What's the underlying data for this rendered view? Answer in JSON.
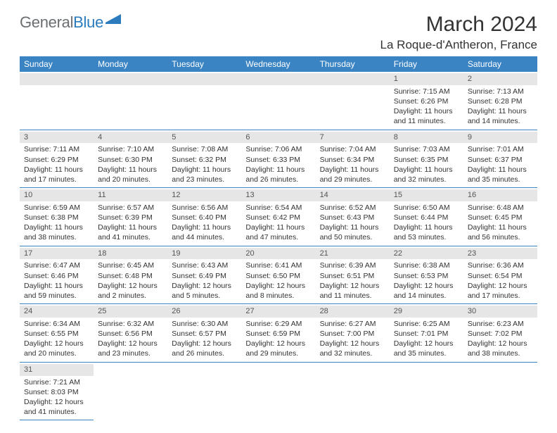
{
  "logo": {
    "primary": "General",
    "accent": "Blue"
  },
  "title": "March 2024",
  "location": "La Roque-d'Antheron, France",
  "colors": {
    "header_bg": "#3b84c4",
    "header_fg": "#ffffff",
    "daynum_bg": "#e6e6e6",
    "rule": "#3b84c4",
    "logo_primary": "#6b6f72",
    "logo_accent": "#2b7bbd"
  },
  "weekdays": [
    "Sunday",
    "Monday",
    "Tuesday",
    "Wednesday",
    "Thursday",
    "Friday",
    "Saturday"
  ],
  "weeks": [
    [
      {
        "n": "",
        "lines": []
      },
      {
        "n": "",
        "lines": []
      },
      {
        "n": "",
        "lines": []
      },
      {
        "n": "",
        "lines": []
      },
      {
        "n": "",
        "lines": []
      },
      {
        "n": "1",
        "lines": [
          "Sunrise: 7:15 AM",
          "Sunset: 6:26 PM",
          "Daylight: 11 hours",
          "and 11 minutes."
        ]
      },
      {
        "n": "2",
        "lines": [
          "Sunrise: 7:13 AM",
          "Sunset: 6:28 PM",
          "Daylight: 11 hours",
          "and 14 minutes."
        ]
      }
    ],
    [
      {
        "n": "3",
        "lines": [
          "Sunrise: 7:11 AM",
          "Sunset: 6:29 PM",
          "Daylight: 11 hours",
          "and 17 minutes."
        ]
      },
      {
        "n": "4",
        "lines": [
          "Sunrise: 7:10 AM",
          "Sunset: 6:30 PM",
          "Daylight: 11 hours",
          "and 20 minutes."
        ]
      },
      {
        "n": "5",
        "lines": [
          "Sunrise: 7:08 AM",
          "Sunset: 6:32 PM",
          "Daylight: 11 hours",
          "and 23 minutes."
        ]
      },
      {
        "n": "6",
        "lines": [
          "Sunrise: 7:06 AM",
          "Sunset: 6:33 PM",
          "Daylight: 11 hours",
          "and 26 minutes."
        ]
      },
      {
        "n": "7",
        "lines": [
          "Sunrise: 7:04 AM",
          "Sunset: 6:34 PM",
          "Daylight: 11 hours",
          "and 29 minutes."
        ]
      },
      {
        "n": "8",
        "lines": [
          "Sunrise: 7:03 AM",
          "Sunset: 6:35 PM",
          "Daylight: 11 hours",
          "and 32 minutes."
        ]
      },
      {
        "n": "9",
        "lines": [
          "Sunrise: 7:01 AM",
          "Sunset: 6:37 PM",
          "Daylight: 11 hours",
          "and 35 minutes."
        ]
      }
    ],
    [
      {
        "n": "10",
        "lines": [
          "Sunrise: 6:59 AM",
          "Sunset: 6:38 PM",
          "Daylight: 11 hours",
          "and 38 minutes."
        ]
      },
      {
        "n": "11",
        "lines": [
          "Sunrise: 6:57 AM",
          "Sunset: 6:39 PM",
          "Daylight: 11 hours",
          "and 41 minutes."
        ]
      },
      {
        "n": "12",
        "lines": [
          "Sunrise: 6:56 AM",
          "Sunset: 6:40 PM",
          "Daylight: 11 hours",
          "and 44 minutes."
        ]
      },
      {
        "n": "13",
        "lines": [
          "Sunrise: 6:54 AM",
          "Sunset: 6:42 PM",
          "Daylight: 11 hours",
          "and 47 minutes."
        ]
      },
      {
        "n": "14",
        "lines": [
          "Sunrise: 6:52 AM",
          "Sunset: 6:43 PM",
          "Daylight: 11 hours",
          "and 50 minutes."
        ]
      },
      {
        "n": "15",
        "lines": [
          "Sunrise: 6:50 AM",
          "Sunset: 6:44 PM",
          "Daylight: 11 hours",
          "and 53 minutes."
        ]
      },
      {
        "n": "16",
        "lines": [
          "Sunrise: 6:48 AM",
          "Sunset: 6:45 PM",
          "Daylight: 11 hours",
          "and 56 minutes."
        ]
      }
    ],
    [
      {
        "n": "17",
        "lines": [
          "Sunrise: 6:47 AM",
          "Sunset: 6:46 PM",
          "Daylight: 11 hours",
          "and 59 minutes."
        ]
      },
      {
        "n": "18",
        "lines": [
          "Sunrise: 6:45 AM",
          "Sunset: 6:48 PM",
          "Daylight: 12 hours",
          "and 2 minutes."
        ]
      },
      {
        "n": "19",
        "lines": [
          "Sunrise: 6:43 AM",
          "Sunset: 6:49 PM",
          "Daylight: 12 hours",
          "and 5 minutes."
        ]
      },
      {
        "n": "20",
        "lines": [
          "Sunrise: 6:41 AM",
          "Sunset: 6:50 PM",
          "Daylight: 12 hours",
          "and 8 minutes."
        ]
      },
      {
        "n": "21",
        "lines": [
          "Sunrise: 6:39 AM",
          "Sunset: 6:51 PM",
          "Daylight: 12 hours",
          "and 11 minutes."
        ]
      },
      {
        "n": "22",
        "lines": [
          "Sunrise: 6:38 AM",
          "Sunset: 6:53 PM",
          "Daylight: 12 hours",
          "and 14 minutes."
        ]
      },
      {
        "n": "23",
        "lines": [
          "Sunrise: 6:36 AM",
          "Sunset: 6:54 PM",
          "Daylight: 12 hours",
          "and 17 minutes."
        ]
      }
    ],
    [
      {
        "n": "24",
        "lines": [
          "Sunrise: 6:34 AM",
          "Sunset: 6:55 PM",
          "Daylight: 12 hours",
          "and 20 minutes."
        ]
      },
      {
        "n": "25",
        "lines": [
          "Sunrise: 6:32 AM",
          "Sunset: 6:56 PM",
          "Daylight: 12 hours",
          "and 23 minutes."
        ]
      },
      {
        "n": "26",
        "lines": [
          "Sunrise: 6:30 AM",
          "Sunset: 6:57 PM",
          "Daylight: 12 hours",
          "and 26 minutes."
        ]
      },
      {
        "n": "27",
        "lines": [
          "Sunrise: 6:29 AM",
          "Sunset: 6:59 PM",
          "Daylight: 12 hours",
          "and 29 minutes."
        ]
      },
      {
        "n": "28",
        "lines": [
          "Sunrise: 6:27 AM",
          "Sunset: 7:00 PM",
          "Daylight: 12 hours",
          "and 32 minutes."
        ]
      },
      {
        "n": "29",
        "lines": [
          "Sunrise: 6:25 AM",
          "Sunset: 7:01 PM",
          "Daylight: 12 hours",
          "and 35 minutes."
        ]
      },
      {
        "n": "30",
        "lines": [
          "Sunrise: 6:23 AM",
          "Sunset: 7:02 PM",
          "Daylight: 12 hours",
          "and 38 minutes."
        ]
      }
    ],
    [
      {
        "n": "31",
        "lines": [
          "Sunrise: 7:21 AM",
          "Sunset: 8:03 PM",
          "Daylight: 12 hours",
          "and 41 minutes."
        ]
      },
      {
        "n": "",
        "lines": []
      },
      {
        "n": "",
        "lines": []
      },
      {
        "n": "",
        "lines": []
      },
      {
        "n": "",
        "lines": []
      },
      {
        "n": "",
        "lines": []
      },
      {
        "n": "",
        "lines": []
      }
    ]
  ]
}
